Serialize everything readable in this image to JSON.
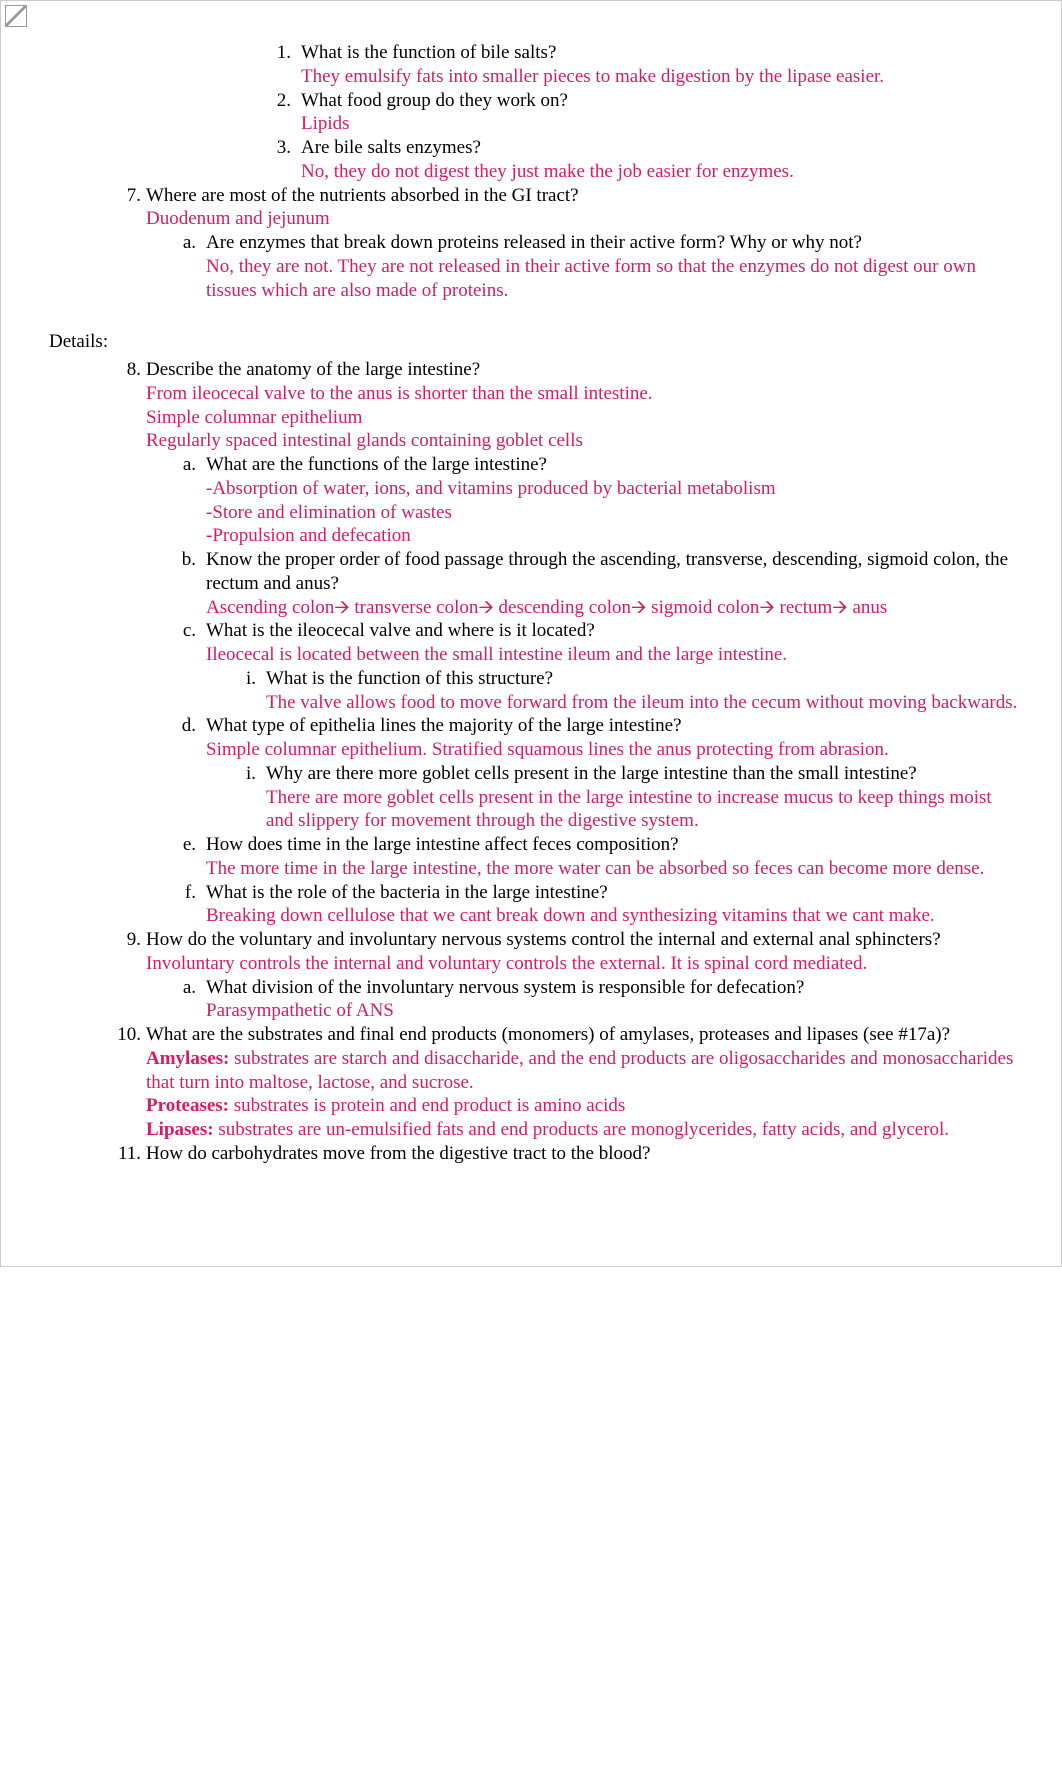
{
  "colors": {
    "question": "#000000",
    "answer": "#d81b60",
    "border": "#cccccc",
    "background": "#ffffff"
  },
  "items": {
    "sub1_q": "What is the function of bile salts?",
    "sub1_a": "They emulsify fats into smaller pieces to make digestion by the lipase easier.",
    "sub2_q": "What food group do they work on?",
    "sub2_a": "Lipids",
    "sub3_q": "Are bile salts enzymes?",
    "sub3_a": "No, they do not digest they just make the job easier for enzymes.",
    "q7": "Where are most of the nutrients absorbed in the GI tract?",
    "q7_a": "Duodenum and jejunum",
    "q7a_q": "Are enzymes that break down proteins released in their active form? Why or why not?",
    "q7a_a": "No, they are not. They are not released in their active form so that the enzymes do not digest our own tissues which are also made of proteins.",
    "details": "Details:",
    "q8": "Describe the anatomy of the large intestine?",
    "q8_a1": "From ileocecal valve to the anus is shorter than the small intestine.",
    "q8_a2": "Simple columnar epithelium",
    "q8_a3": "Regularly spaced intestinal glands containing goblet cells",
    "q8a_q": "What are the functions of the large intestine?",
    "q8a_a1": "-Absorption of water, ions, and vitamins produced by bacterial metabolism",
    "q8a_a2": "-Store and elimination of wastes",
    "q8a_a3": "-Propulsion and defecation",
    "q8b_q": "Know the proper order of food passage through the ascending, transverse, descending, sigmoid colon, the rectum and anus?",
    "q8b_a": "Ascending colon🡪 transverse colon🡪 descending colon🡪 sigmoid colon🡪 rectum🡪 anus",
    "q8c_q": "What is the ileocecal valve and where is it located?",
    "q8c_a": "Ileocecal is located between the small intestine ileum and the large intestine.",
    "q8ci_q": "What is the function of this structure?",
    "q8ci_a": "The valve allows food to move forward from the ileum into the cecum without moving backwards.",
    "q8d_q": "What type of epithelia lines the majority of the large intestine?",
    "q8d_a": "Simple columnar epithelium. Stratified squamous lines the anus protecting from abrasion.",
    "q8di_q": "Why are there more goblet cells present in the large intestine than the small intestine?",
    "q8di_a": "There are more goblet cells present in the large intestine to increase mucus to keep things moist and slippery for movement through the digestive system.",
    "q8e_q": "How does time in the large intestine affect feces composition?",
    "q8e_a": "The more time in the large intestine, the more water can be absorbed so feces can become more dense.",
    "q8f_q": "What is the role of the bacteria in the large intestine?",
    "q8f_a": "Breaking down cellulose that we cant break down and synthesizing vitamins that we cant make.",
    "q9": "How do the voluntary and involuntary nervous systems control the internal and external anal sphincters?",
    "q9_a": "Involuntary controls the internal and voluntary controls the external. It is spinal cord mediated.",
    "q9a_q": "What division of the involuntary nervous system is responsible for defecation?",
    "q9a_a": "Parasympathetic of ANS",
    "q10": "What are the substrates and final end products (monomers) of amylases, proteases and lipases (see #17a)?",
    "q10_amylases_label": "Amylases:",
    "q10_amylases": " substrates are starch and disaccharide, and the end products are oligosaccharides and monosaccharides that turn into maltose, lactose, and sucrose.",
    "q10_proteases_label": "Proteases:",
    "q10_proteases": " substrates is protein and end product is amino acids",
    "q10_lipases_label": "Lipases:",
    "q10_lipases": " substrates are un-emulsified fats and end products are monoglycerides, fatty acids, and glycerol.",
    "q11": "How do carbohydrates move from the digestive tract to the blood?"
  },
  "markers": {
    "m1": "1.",
    "m2": "2.",
    "m3": "3.",
    "m7": "7.",
    "m8": "8.",
    "m9": "9.",
    "m10": "10.",
    "m11": "11.",
    "ma": "a.",
    "mb": "b.",
    "mc": "c.",
    "md": "d.",
    "me": "e.",
    "mf": "f.",
    "mi": "i."
  }
}
